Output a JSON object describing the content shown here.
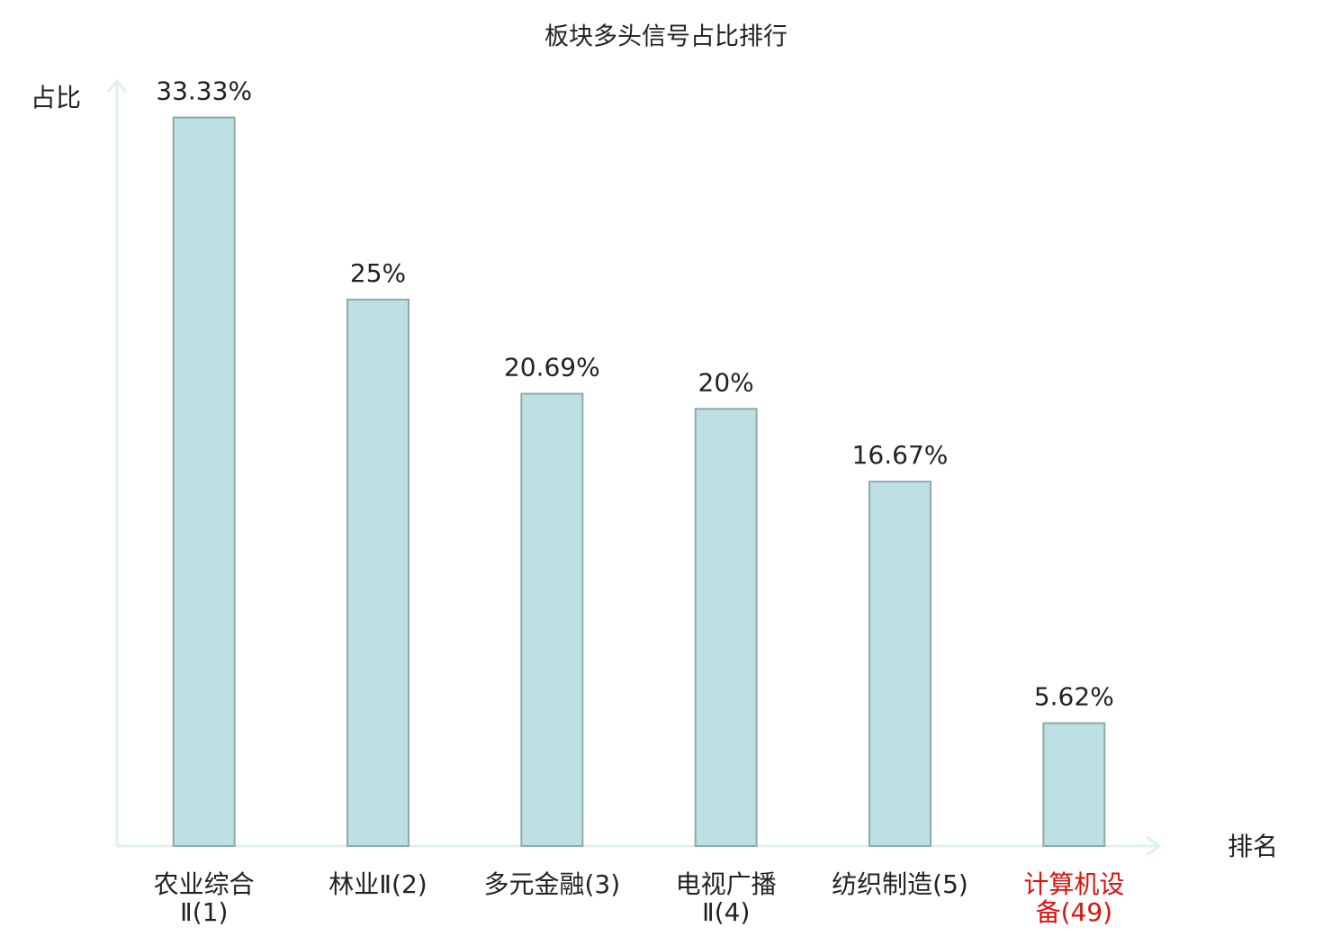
{
  "chart_data": {
    "type": "bar",
    "title": "板块多头信号占比排行",
    "y_label": "占比",
    "x_label": "排名",
    "categories": [
      "农业综合Ⅱ(1)",
      "林业Ⅱ(2)",
      "多元金融(3)",
      "电视广播Ⅱ(4)",
      "纺织制造(5)",
      "计算机设备(49)"
    ],
    "values": [
      33.33,
      25,
      20.69,
      20,
      16.67,
      5.62
    ],
    "value_labels": [
      "33.33%",
      "25%",
      "20.69%",
      "20%",
      "16.67%",
      "5.62%"
    ],
    "color": "#bde0e2",
    "edge_color": "#8fa9ab",
    "label_colors": [
      "#222222",
      "#222222",
      "#222222",
      "#222222",
      "#222222",
      "#e01010"
    ],
    "ylim": [
      0,
      35
    ]
  }
}
